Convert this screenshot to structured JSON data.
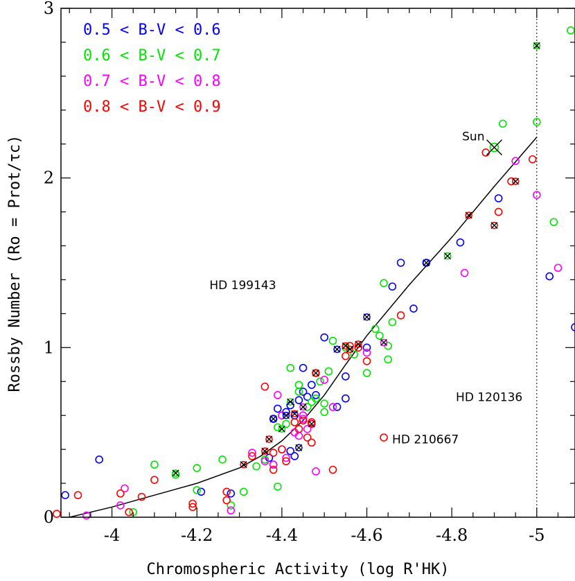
{
  "chart_data": {
    "type": "scatter",
    "xlabel": "Chromospheric Activity (log R'HK)",
    "ylabel": "Rossby Number (Ro = Prot/τc)",
    "xlim": [
      -3.88,
      -5.09
    ],
    "ylim": [
      0,
      3
    ],
    "x_ticks": [
      "-4",
      "-4.2",
      "-4.4",
      "-4.6",
      "-4.8",
      "-5"
    ],
    "y_ticks": [
      "0",
      "1",
      "2",
      "3"
    ],
    "x_tick_values": [
      -4,
      -4.2,
      -4.4,
      -4.6,
      -4.8,
      -5
    ],
    "y_tick_values": [
      0,
      1,
      2,
      3
    ],
    "legend_position": "top-left",
    "vline": {
      "x": -5.0,
      "style": "dotted"
    },
    "series": [
      {
        "name": "0.5 < B-V < 0.6",
        "color": "#0000ff",
        "points": [
          [
            -3.89,
            0.13
          ],
          [
            -3.97,
            0.34
          ],
          [
            -4.21,
            0.15
          ],
          [
            -4.28,
            0.14
          ],
          [
            -4.38,
            0.58
          ],
          [
            -4.39,
            0.64
          ],
          [
            -4.41,
            0.62
          ],
          [
            -4.42,
            0.66
          ],
          [
            -4.43,
            0.6
          ],
          [
            -4.44,
            0.69
          ],
          [
            -4.45,
            0.74
          ],
          [
            -4.46,
            0.71
          ],
          [
            -4.47,
            0.78
          ],
          [
            -4.48,
            0.72
          ],
          [
            -4.45,
            0.88
          ],
          [
            -4.5,
            1.06
          ],
          [
            -4.53,
            0.65
          ],
          [
            -4.55,
            0.7
          ],
          [
            -4.55,
            0.83
          ],
          [
            -4.6,
            1.0
          ],
          [
            -4.66,
            1.36
          ],
          [
            -4.68,
            1.5
          ],
          [
            -4.71,
            1.23
          ],
          [
            -4.74,
            1.5
          ],
          [
            -4.82,
            1.62
          ],
          [
            -4.91,
            1.88
          ],
          [
            -4.43,
            0.36
          ],
          [
            -4.42,
            0.39
          ],
          [
            -4.38,
            0.31
          ],
          [
            -4.37,
            0.35
          ],
          [
            -5.03,
            1.42
          ],
          [
            -5.09,
            1.12
          ]
        ]
      },
      {
        "name": "0.6 < B-V < 0.7",
        "color": "#00e600",
        "points": [
          [
            -4.05,
            0.03
          ],
          [
            -4.1,
            0.31
          ],
          [
            -4.15,
            0.25
          ],
          [
            -4.2,
            0.29
          ],
          [
            -4.2,
            0.16
          ],
          [
            -4.26,
            0.34
          ],
          [
            -4.28,
            0.07
          ],
          [
            -4.31,
            0.15
          ],
          [
            -4.34,
            0.3
          ],
          [
            -4.36,
            0.34
          ],
          [
            -4.39,
            0.18
          ],
          [
            -4.39,
            0.53
          ],
          [
            -4.41,
            0.55
          ],
          [
            -4.42,
            0.88
          ],
          [
            -4.44,
            0.78
          ],
          [
            -4.44,
            0.74
          ],
          [
            -4.45,
            0.6
          ],
          [
            -4.46,
            0.65
          ],
          [
            -4.47,
            0.68
          ],
          [
            -4.48,
            0.7
          ],
          [
            -4.49,
            0.8
          ],
          [
            -4.5,
            0.67
          ],
          [
            -4.5,
            0.62
          ],
          [
            -4.51,
            0.86
          ],
          [
            -4.52,
            1.04
          ],
          [
            -4.55,
            1.0
          ],
          [
            -4.57,
            0.96
          ],
          [
            -4.6,
            0.85
          ],
          [
            -4.62,
            1.11
          ],
          [
            -4.63,
            1.07
          ],
          [
            -4.64,
            1.38
          ],
          [
            -4.65,
            0.93
          ],
          [
            -4.65,
            1.01
          ],
          [
            -4.66,
            1.15
          ],
          [
            -4.92,
            2.32
          ],
          [
            -5.0,
            2.33
          ],
          [
            -5.04,
            1.74
          ],
          [
            -5.08,
            2.87
          ]
        ]
      },
      {
        "name": "0.7 < B-V < 0.8",
        "color": "#ff00ff",
        "points": [
          [
            -3.94,
            0.01
          ],
          [
            -4.02,
            0.07
          ],
          [
            -4.03,
            0.17
          ],
          [
            -4.28,
            0.04
          ],
          [
            -4.33,
            0.38
          ],
          [
            -4.36,
            0.33
          ],
          [
            -4.38,
            0.31
          ],
          [
            -4.39,
            0.72
          ],
          [
            -4.4,
            0.4
          ],
          [
            -4.4,
            0.6
          ],
          [
            -4.41,
            0.35
          ],
          [
            -4.43,
            0.5
          ],
          [
            -4.44,
            0.48
          ],
          [
            -4.45,
            0.6
          ],
          [
            -4.45,
            0.58
          ],
          [
            -4.46,
            0.52
          ],
          [
            -4.47,
            0.55
          ],
          [
            -4.48,
            0.27
          ],
          [
            -4.5,
            0.81
          ],
          [
            -4.52,
            0.65
          ],
          [
            -4.6,
            0.97
          ],
          [
            -4.83,
            1.44
          ],
          [
            -4.95,
            2.1
          ],
          [
            -5.0,
            1.9
          ],
          [
            -5.05,
            1.47
          ]
        ]
      },
      {
        "name": "0.8 < B-V < 0.9",
        "color": "#ff0000",
        "points": [
          [
            -3.87,
            0.02
          ],
          [
            -3.92,
            0.13
          ],
          [
            -4.02,
            0.14
          ],
          [
            -4.04,
            0.03
          ],
          [
            -4.07,
            0.12
          ],
          [
            -4.1,
            0.22
          ],
          [
            -4.19,
            0.08
          ],
          [
            -4.19,
            0.06
          ],
          [
            -4.27,
            0.15
          ],
          [
            -4.27,
            0.1
          ],
          [
            -4.33,
            0.36
          ],
          [
            -4.36,
            0.77
          ],
          [
            -4.38,
            0.28
          ],
          [
            -4.38,
            0.38
          ],
          [
            -4.4,
            0.4
          ],
          [
            -4.41,
            0.33
          ],
          [
            -4.43,
            0.56
          ],
          [
            -4.44,
            0.52
          ],
          [
            -4.45,
            0.57
          ],
          [
            -4.46,
            0.47
          ],
          [
            -4.47,
            0.56
          ],
          [
            -4.47,
            0.44
          ],
          [
            -4.48,
            0.85
          ],
          [
            -4.52,
            0.28
          ],
          [
            -4.55,
            0.95
          ],
          [
            -4.56,
            1.01
          ],
          [
            -4.58,
            1.0
          ],
          [
            -4.6,
            0.92
          ],
          [
            -4.64,
            0.47
          ],
          [
            -4.68,
            1.19
          ],
          [
            -4.88,
            2.15
          ],
          [
            -4.91,
            1.8
          ],
          [
            -4.94,
            1.98
          ],
          [
            -4.99,
            2.11
          ]
        ]
      }
    ],
    "crossed_points": [
      {
        "x": -4.15,
        "y": 0.26,
        "color": "#00e600"
      },
      {
        "x": -4.31,
        "y": 0.31,
        "color": "#ff0000"
      },
      {
        "x": -4.36,
        "y": 0.39,
        "color": "#ff0000"
      },
      {
        "x": -4.37,
        "y": 0.46,
        "color": "#ff0000"
      },
      {
        "x": -4.38,
        "y": 0.58,
        "color": "#0000ff"
      },
      {
        "x": -4.4,
        "y": 0.52,
        "color": "#00e600"
      },
      {
        "x": -4.41,
        "y": 0.6,
        "color": "#0000ff"
      },
      {
        "x": -4.42,
        "y": 0.68,
        "color": "#00e600"
      },
      {
        "x": -4.43,
        "y": 0.61,
        "color": "#ff0000"
      },
      {
        "x": -4.44,
        "y": 0.41,
        "color": "#0000ff"
      },
      {
        "x": -4.45,
        "y": 0.65,
        "color": "#ff00ff"
      },
      {
        "x": -4.47,
        "y": 0.55,
        "color": "#ff0000"
      },
      {
        "x": -4.48,
        "y": 0.85,
        "color": "#ff0000"
      },
      {
        "x": -4.53,
        "y": 0.99,
        "color": "#0000ff"
      },
      {
        "x": -4.55,
        "y": 1.01,
        "color": "#ff0000"
      },
      {
        "x": -4.56,
        "y": 0.99,
        "color": "#ff0000"
      },
      {
        "x": -4.58,
        "y": 1.02,
        "color": "#ff0000"
      },
      {
        "x": -4.6,
        "y": 1.18,
        "color": "#0000ff"
      },
      {
        "x": -4.64,
        "y": 1.03,
        "color": "#ff00ff"
      },
      {
        "x": -4.74,
        "y": 1.5,
        "color": "#0000ff"
      },
      {
        "x": -4.79,
        "y": 1.54,
        "color": "#00e600"
      },
      {
        "x": -4.84,
        "y": 1.78,
        "color": "#ff0000"
      },
      {
        "x": -4.9,
        "y": 1.72,
        "color": "#ff0000"
      },
      {
        "x": -4.95,
        "y": 1.98,
        "color": "#ff0000"
      },
      {
        "x": -5.0,
        "y": 2.78,
        "color": "#00e600"
      }
    ],
    "sun": {
      "x": -4.9,
      "y": 2.18,
      "label": "Sun",
      "color": "#00e600"
    },
    "annotations": [
      {
        "label": "HD 199143",
        "x": -4.21,
        "y": 1.37,
        "color": "#0000ff"
      },
      {
        "label": "HD 120136",
        "x": -4.79,
        "y": 0.71,
        "color": "#0000ff"
      },
      {
        "label": "HD 210667",
        "x": -4.64,
        "y": 0.46,
        "color": "#ff0000"
      }
    ],
    "fit_curve": [
      [
        -3.9,
        0.0
      ],
      [
        -4.0,
        0.06
      ],
      [
        -4.1,
        0.13
      ],
      [
        -4.2,
        0.2
      ],
      [
        -4.3,
        0.29
      ],
      [
        -4.35,
        0.36
      ],
      [
        -4.4,
        0.45
      ],
      [
        -4.45,
        0.57
      ],
      [
        -4.5,
        0.72
      ],
      [
        -4.55,
        0.9
      ],
      [
        -4.6,
        1.07
      ],
      [
        -4.7,
        1.37
      ],
      [
        -4.8,
        1.65
      ],
      [
        -4.9,
        1.95
      ],
      [
        -5.0,
        2.24
      ]
    ]
  }
}
